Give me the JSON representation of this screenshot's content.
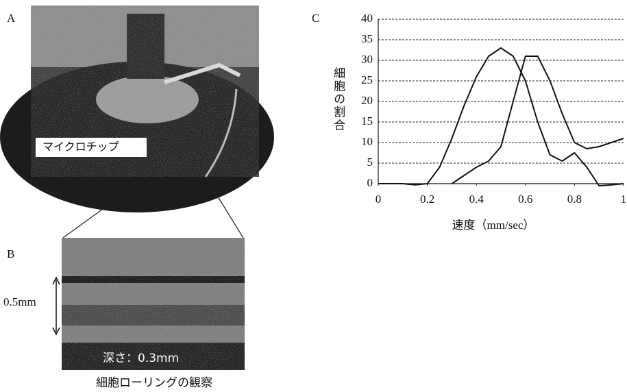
{
  "panel_a": {
    "label": "A",
    "photo_caption": "マイクロチップ"
  },
  "panel_b": {
    "label": "B",
    "width_label": "0.5mm",
    "depth_label": "深さ：0.3mm",
    "caption": "細胞ローリングの観察"
  },
  "panel_c": {
    "label": "C"
  },
  "chart_data": {
    "type": "line",
    "y_label": "細胞の割合",
    "x_label": "速度（mm/sec）",
    "x": [
      0,
      0.05,
      0.1,
      0.15,
      0.2,
      0.25,
      0.3,
      0.35,
      0.4,
      0.45,
      0.5,
      0.55,
      0.6,
      0.65,
      0.7,
      0.75,
      0.8,
      0.85,
      0.9,
      0.95,
      1
    ],
    "series": [
      {
        "color": "#111111",
        "values": [
          0,
          0,
          0,
          -0.3,
          0,
          4,
          11,
          19,
          26,
          31,
          33,
          31,
          25,
          15,
          7,
          5.5,
          7.5,
          4,
          -0.5,
          -0.3,
          0
        ]
      },
      {
        "color": "#111111",
        "values": [
          null,
          null,
          null,
          null,
          null,
          null,
          0,
          2,
          4,
          5.5,
          9,
          20,
          31,
          31,
          25,
          17,
          10,
          8.5,
          9,
          10,
          11
        ]
      }
    ],
    "xlim": [
      0,
      1
    ],
    "ylim": [
      0,
      40
    ],
    "xticks": [
      0,
      0.2,
      0.4,
      0.6,
      0.8,
      1
    ],
    "yticks": [
      0,
      5,
      10,
      15,
      20,
      25,
      30,
      35,
      40
    ],
    "grid": true
  }
}
